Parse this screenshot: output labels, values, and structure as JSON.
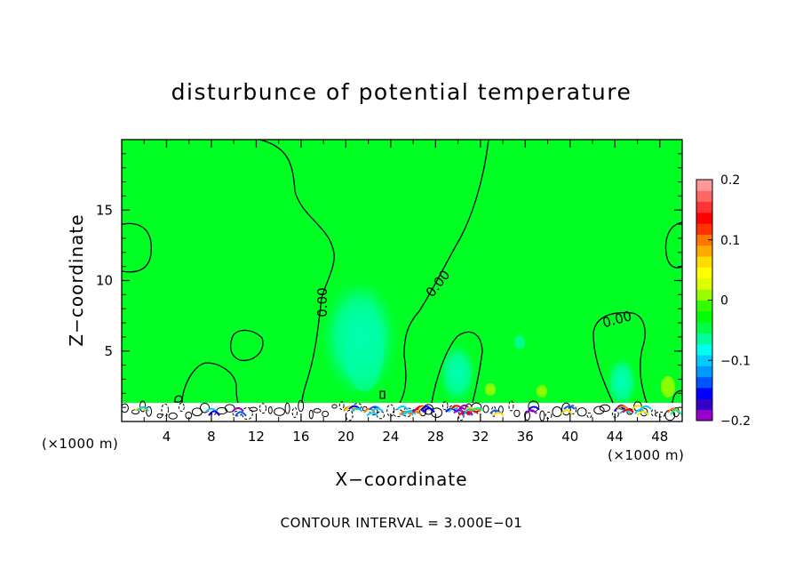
{
  "chart_data": {
    "type": "heatmap",
    "title": "disturbunce of potential temperature",
    "xlabel": "X−coordinate",
    "ylabel": "Z−coordinate",
    "x_unit": "(×1000 m)",
    "y_unit": "(×1000 m)",
    "xlim": [
      0,
      50
    ],
    "ylim": [
      0,
      20
    ],
    "x_ticks": [
      4,
      8,
      12,
      16,
      20,
      24,
      28,
      32,
      36,
      40,
      44,
      48
    ],
    "y_ticks": [
      5,
      10,
      15
    ],
    "colorbar": {
      "range": [
        -0.2,
        0.2
      ],
      "ticks": [
        {
          "value": 0.2,
          "label": "0.2"
        },
        {
          "value": 0.1,
          "label": "0.1"
        },
        {
          "value": 0,
          "label": "0"
        },
        {
          "value": -0.1,
          "label": "−0.1"
        },
        {
          "value": -0.2,
          "label": "−0.2"
        }
      ],
      "colors": [
        "#9900cc",
        "#3300cc",
        "#0000ff",
        "#0055ff",
        "#0099ff",
        "#00ccff",
        "#00ffee",
        "#00ff99",
        "#00ff44",
        "#00ff00",
        "#33ff00",
        "#99ff00",
        "#ddff00",
        "#ffff00",
        "#ffdd00",
        "#ffaa00",
        "#ff7700",
        "#ff3300",
        "#ff0000",
        "#ff3333",
        "#ff6666",
        "#ff9999"
      ]
    },
    "background_value": 0,
    "contour_label": "0.00",
    "contour_interval_text": "CONTOUR INTERVAL = 3.000E−01"
  }
}
